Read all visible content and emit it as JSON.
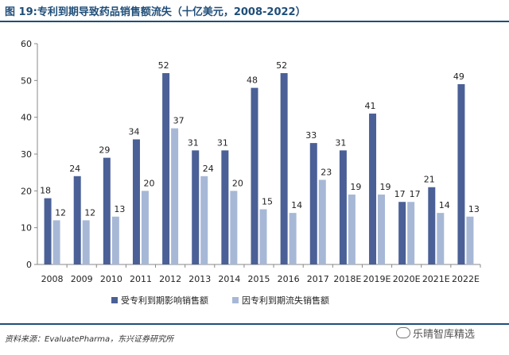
{
  "title": "图 19:专利到期导致药品销售额流失（十亿美元，2008-2022）",
  "source": "资料来源：EvaluatePharma，东兴证券研究所",
  "watermark": "乐晴智库精选",
  "chart_data": {
    "type": "bar",
    "categories": [
      "2008",
      "2009",
      "2010",
      "2011",
      "2012",
      "2013",
      "2014",
      "2015",
      "2016",
      "2017",
      "2018E",
      "2019E",
      "2020E",
      "2021E",
      "2022E"
    ],
    "series": [
      {
        "name": "受专利到期影响销售额",
        "values": [
          18,
          24,
          29,
          34,
          52,
          31,
          31,
          48,
          52,
          33,
          31,
          41,
          17,
          21,
          49
        ],
        "color": "#4a6096"
      },
      {
        "name": "因专利到期流失销售额",
        "values": [
          12,
          12,
          13,
          20,
          37,
          24,
          20,
          15,
          14,
          23,
          19,
          19,
          17,
          14,
          13
        ],
        "color": "#a7b8d6"
      }
    ],
    "ylim": [
      0,
      60
    ],
    "yticks": [
      0,
      10,
      20,
      30,
      40,
      50,
      60
    ],
    "legend_position": "bottom",
    "grid": false
  }
}
